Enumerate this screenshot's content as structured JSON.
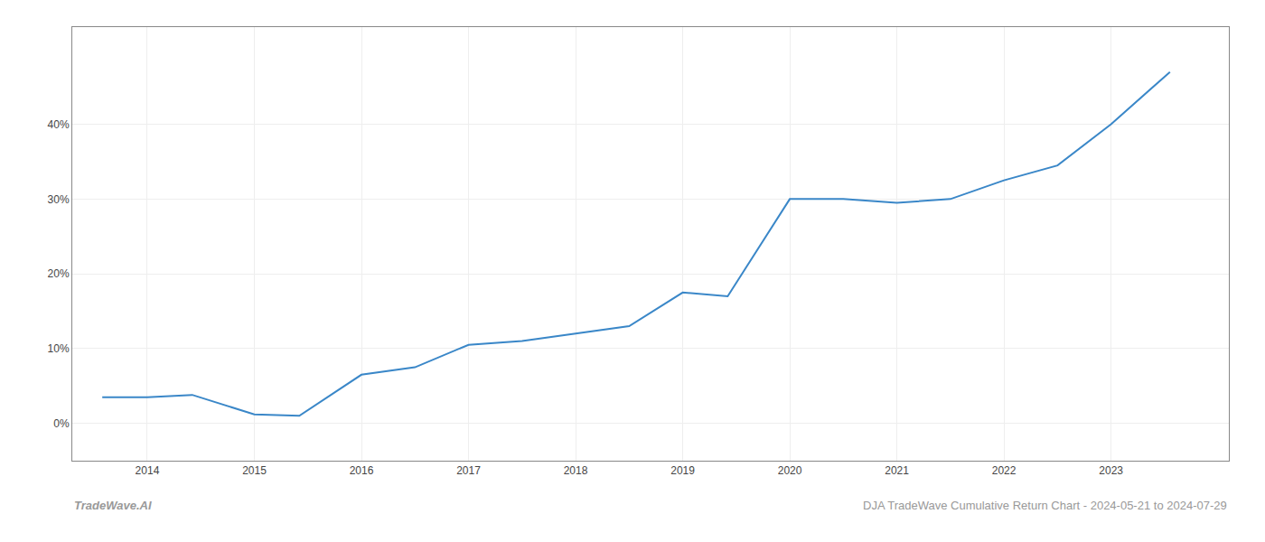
{
  "chart_data": {
    "type": "line",
    "x": [
      2013.58,
      2014.0,
      2014.42,
      2015.0,
      2015.42,
      2016.0,
      2016.5,
      2017.0,
      2017.5,
      2018.0,
      2018.5,
      2019.0,
      2019.42,
      2020.0,
      2020.5,
      2021.0,
      2021.5,
      2022.0,
      2022.5,
      2023.0,
      2023.55
    ],
    "values": [
      3.5,
      3.5,
      3.8,
      1.2,
      1.0,
      6.5,
      7.5,
      10.5,
      11.0,
      12.0,
      13.0,
      17.5,
      17.0,
      30.0,
      30.0,
      29.5,
      30.0,
      32.5,
      34.5,
      40.0,
      47.0
    ],
    "color": "#3a87c8",
    "xlim": [
      2013.3,
      2024.1
    ],
    "ylim": [
      -5,
      53
    ],
    "xticks": [
      2014,
      2015,
      2016,
      2017,
      2018,
      2019,
      2020,
      2021,
      2022,
      2023
    ],
    "yticks": [
      {
        "value": 0,
        "label": "0%"
      },
      {
        "value": 10,
        "label": "10%"
      },
      {
        "value": 20,
        "label": "20%"
      },
      {
        "value": 30,
        "label": "30%"
      },
      {
        "value": 40,
        "label": "40%"
      }
    ],
    "grid": true,
    "annotations": [
      "TradeWave.AI",
      "DJA TradeWave Cumulative Return Chart - 2024-05-21 to 2024-07-29"
    ]
  }
}
